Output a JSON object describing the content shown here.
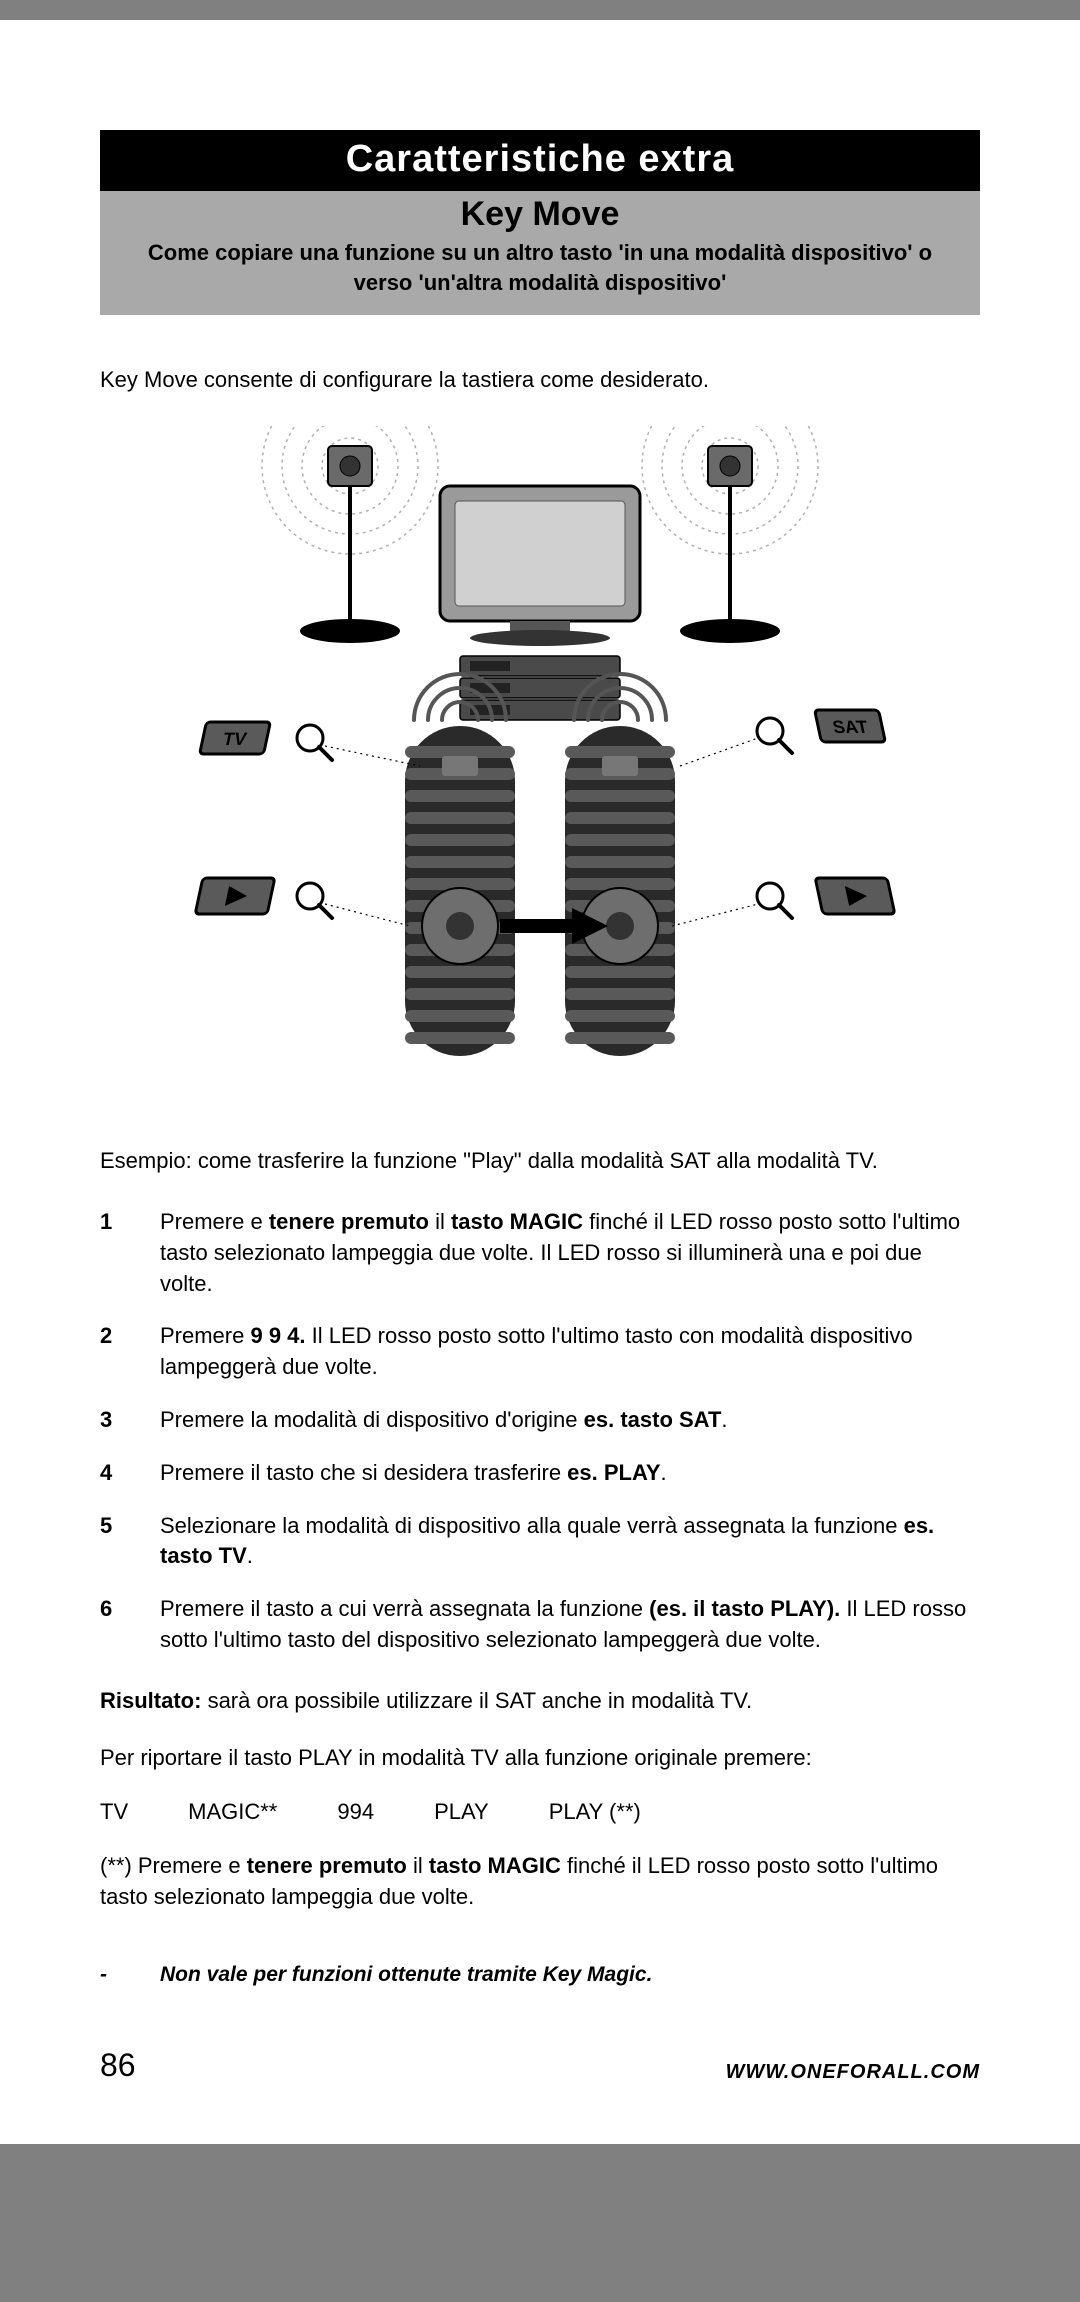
{
  "header": {
    "title": "Caratteristiche extra",
    "subtitle": "Key Move",
    "description": "Come copiare una funzione su un altro tasto 'in una modalità dispositivo' o verso  'un'altra modalità dispositivo'"
  },
  "intro": "Key Move consente di configurare la tastiera come desiderato.",
  "diagram": {
    "speaker_color": "#6a6a6a",
    "tv_color": "#9a9a9a",
    "tv_screen_color": "#d0d0d0",
    "remote_color": "#2a2a2a",
    "remote_stripe": "#595959",
    "badge_bg": "#5a5a5a",
    "badge_border": "#000000",
    "badge_text_color": "#000000",
    "label_tv": "TV",
    "label_sat": "SAT",
    "play_icon": "▶",
    "wave_color": "#b0b0b0",
    "arrow_color": "#000000",
    "magnifier_color": "#000000"
  },
  "example": "Esempio: come trasferire la funzione \"Play\" dalla modalità SAT alla modalità TV.",
  "steps": [
    {
      "n": "1",
      "html": "Premere e <b>tenere premuto</b> il <b>tasto MAGIC</b> finché il LED rosso posto sotto l'ultimo tasto selezionato lampeggia due volte. Il LED rosso si illuminerà una e poi due volte."
    },
    {
      "n": "2",
      "html": "Premere <b>9 9 4.</b> Il LED  rosso posto sotto l'ultimo tasto con modalità dispositivo lampeggerà due volte."
    },
    {
      "n": "3",
      "html": "Premere la modalità di dispositivo d'origine <b>es. tasto SAT</b>."
    },
    {
      "n": "4",
      "html": "Premere il tasto che si desidera trasferire <b>es. PLAY</b>."
    },
    {
      "n": "5",
      "html": "Selezionare la modalità di dispositivo alla quale verrà assegnata la funzione <b>es. tasto TV</b>."
    },
    {
      "n": "6",
      "html": "Premere il tasto a cui verrà assegnata la funzione <b>(es. il tasto PLAY).</b> Il LED rosso sotto l'ultimo tasto del dispositivo selezionato lampeggerà due volte."
    }
  ],
  "result_html": "<b>Risultato:</b> sarà ora possibile utilizzare il SAT anche in modalità TV.",
  "restore": "Per riportare il tasto PLAY in modalità TV alla funzione originale premere:",
  "sequence": [
    "TV",
    "MAGIC**",
    "994",
    "PLAY",
    "PLAY (**)"
  ],
  "footnote_html": "(**) Premere e <b>tenere premuto</b> il <b>tasto MAGIC</b> finché il LED rosso posto sotto l'ultimo tasto selezionato lampeggia due volte.",
  "note": {
    "dash": "-",
    "text": "Non vale per funzioni ottenute tramite Key Magic."
  },
  "footer": {
    "page": "86",
    "url": "WWW.ONEFORALL.COM"
  }
}
